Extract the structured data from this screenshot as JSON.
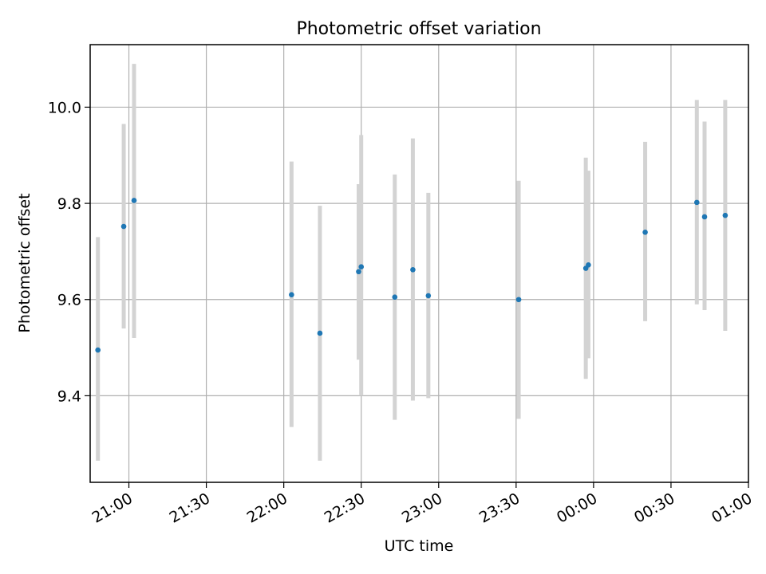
{
  "chart_data": {
    "type": "scatter",
    "title": "Photometric offset variation",
    "xlabel": "UTC time",
    "ylabel": "Photometric offset",
    "grid": true,
    "legend": "none",
    "x_axis": {
      "type": "time",
      "range": [
        "20:45",
        "01:00"
      ],
      "ticks": [
        "21:00",
        "21:30",
        "22:00",
        "22:30",
        "23:00",
        "23:30",
        "00:00",
        "00:30",
        "01:00"
      ]
    },
    "y_axis": {
      "range": [
        9.22,
        10.13
      ],
      "ticks": [
        "9.4",
        "9.6",
        "9.8",
        "10.0"
      ]
    },
    "marker_color": "#1f77b4",
    "errorbar_color": "#d3d3d3",
    "points": [
      {
        "x": "20:48",
        "y": 9.495,
        "low": 9.265,
        "high": 9.73
      },
      {
        "x": "20:58",
        "y": 9.752,
        "low": 9.54,
        "high": 9.965
      },
      {
        "x": "21:02",
        "y": 9.806,
        "low": 9.52,
        "high": 10.09
      },
      {
        "x": "22:03",
        "y": 9.61,
        "low": 9.335,
        "high": 9.887
      },
      {
        "x": "22:14",
        "y": 9.53,
        "low": 9.265,
        "high": 9.795
      },
      {
        "x": "22:29",
        "y": 9.658,
        "low": 9.475,
        "high": 9.84
      },
      {
        "x": "22:30",
        "y": 9.668,
        "low": 9.4,
        "high": 9.942
      },
      {
        "x": "22:43",
        "y": 9.605,
        "low": 9.35,
        "high": 9.86
      },
      {
        "x": "22:50",
        "y": 9.662,
        "low": 9.39,
        "high": 9.935
      },
      {
        "x": "22:56",
        "y": 9.608,
        "low": 9.395,
        "high": 9.822
      },
      {
        "x": "23:31",
        "y": 9.6,
        "low": 9.352,
        "high": 9.847
      },
      {
        "x": "23:57",
        "y": 9.665,
        "low": 9.435,
        "high": 9.895
      },
      {
        "x": "23:58",
        "y": 9.672,
        "low": 9.478,
        "high": 9.868
      },
      {
        "x": "00:20",
        "y": 9.74,
        "low": 9.555,
        "high": 9.928
      },
      {
        "x": "00:40",
        "y": 9.802,
        "low": 9.59,
        "high": 10.015
      },
      {
        "x": "00:43",
        "y": 9.772,
        "low": 9.578,
        "high": 9.97
      },
      {
        "x": "00:51",
        "y": 9.775,
        "low": 9.535,
        "high": 10.015
      }
    ]
  }
}
